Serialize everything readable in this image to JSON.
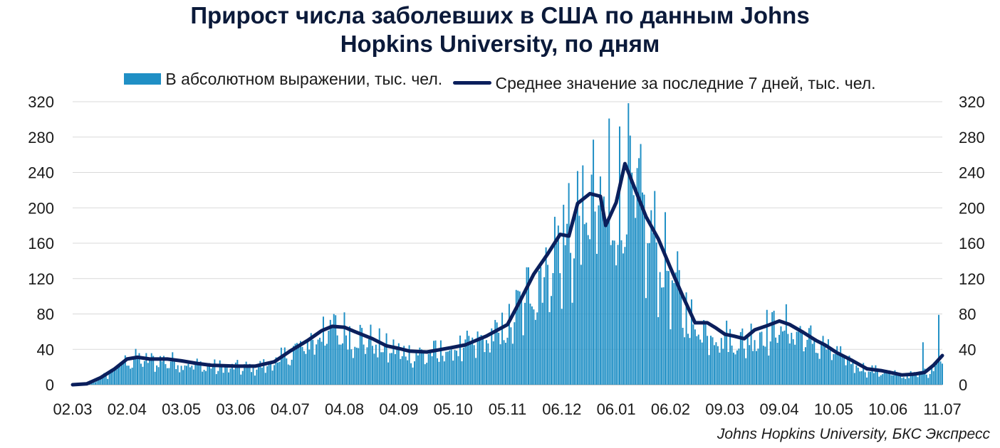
{
  "title_line1": "Прирост числа заболевших в США по данным Johns",
  "title_line2": "Hopkins University, по дням",
  "source": "Johns Hopkins University, БКС Экспресс",
  "colors": {
    "bars": "#1f8fc5",
    "line": "#0b1f5c",
    "grid": "#d9d9d9"
  },
  "chart_data": {
    "type": "bar+line",
    "title": "Прирост числа заболевших в США по данным Johns Hopkins University, по дням",
    "x_tick_labels": [
      "02.03",
      "02.04",
      "03.05",
      "03.06",
      "04.07",
      "04.08",
      "04.09",
      "05.10",
      "05.11",
      "06.12",
      "06.01",
      "06.02",
      "09.03",
      "09.04",
      "10.05",
      "10.06",
      "11.07"
    ],
    "ylim": [
      0,
      320
    ],
    "y_ticks": [
      0,
      40,
      80,
      120,
      160,
      200,
      240,
      280,
      320
    ],
    "y_tick_labels": [
      "0",
      "40",
      "80",
      "120",
      "160",
      "200",
      "240",
      "280",
      "320"
    ],
    "grid": true,
    "legend_position": "top",
    "unit_note": "значения в тыс. чел., шкалы слева и справа одинаковые",
    "series": [
      {
        "name": "В абсолютном выражении, тыс. чел.",
        "kind": "bar",
        "description": "ежедневный прирост; шумный ряд вокруг среднего, пики: ~31 (апр 2020), ~77 (июль 2020), ~248 (дек 2020), ~301 (янв 2021), ~106 (фев 2021), ~82 (апр 2021), ~79 (июль 2021)"
      },
      {
        "name": "Среднее значение за последние 7 дней, тыс. чел.",
        "kind": "line",
        "points": [
          [
            "02.03",
            0
          ],
          [
            "10.03",
            1
          ],
          [
            "18.03",
            8
          ],
          [
            "26.03",
            18
          ],
          [
            "02.04",
            29
          ],
          [
            "08.04",
            31
          ],
          [
            "15.04",
            29
          ],
          [
            "25.04",
            29
          ],
          [
            "03.05",
            27
          ],
          [
            "12.05",
            24
          ],
          [
            "20.05",
            22
          ],
          [
            "03.06",
            21
          ],
          [
            "14.06",
            21
          ],
          [
            "25.06",
            26
          ],
          [
            "04.07",
            38
          ],
          [
            "14.07",
            50
          ],
          [
            "22.07",
            61
          ],
          [
            "28.07",
            66
          ],
          [
            "04.08",
            65
          ],
          [
            "10.08",
            60
          ],
          [
            "20.08",
            52
          ],
          [
            "28.08",
            44
          ],
          [
            "04.09",
            41
          ],
          [
            "10.09",
            38
          ],
          [
            "20.09",
            37
          ],
          [
            "04.10",
            42
          ],
          [
            "12.10",
            45
          ],
          [
            "24.10",
            55
          ],
          [
            "05.11",
            68
          ],
          [
            "12.11",
            94
          ],
          [
            "20.11",
            125
          ],
          [
            "28.11",
            148
          ],
          [
            "05.12",
            170
          ],
          [
            "10.12",
            168
          ],
          [
            "15.12",
            205
          ],
          [
            "22.12",
            216
          ],
          [
            "28.12",
            213
          ],
          [
            "31.12",
            180
          ],
          [
            "06.01",
            206
          ],
          [
            "11.01",
            250
          ],
          [
            "16.01",
            225
          ],
          [
            "23.01",
            190
          ],
          [
            "30.01",
            165
          ],
          [
            "06.02",
            132
          ],
          [
            "13.02",
            100
          ],
          [
            "20.02",
            70
          ],
          [
            "27.02",
            70
          ],
          [
            "04.03",
            64
          ],
          [
            "09.03",
            57
          ],
          [
            "14.03",
            55
          ],
          [
            "20.03",
            52
          ],
          [
            "26.03",
            62
          ],
          [
            "01.04",
            66
          ],
          [
            "09.04",
            72
          ],
          [
            "15.04",
            68
          ],
          [
            "22.04",
            60
          ],
          [
            "30.04",
            50
          ],
          [
            "05.05",
            45
          ],
          [
            "12.05",
            36
          ],
          [
            "20.05",
            28
          ],
          [
            "29.05",
            18
          ],
          [
            "06.06",
            16
          ],
          [
            "11.06",
            14
          ],
          [
            "18.06",
            11
          ],
          [
            "25.06",
            12
          ],
          [
            "01.07",
            14
          ],
          [
            "06.07",
            22
          ],
          [
            "11.07",
            33
          ]
        ]
      }
    ]
  }
}
